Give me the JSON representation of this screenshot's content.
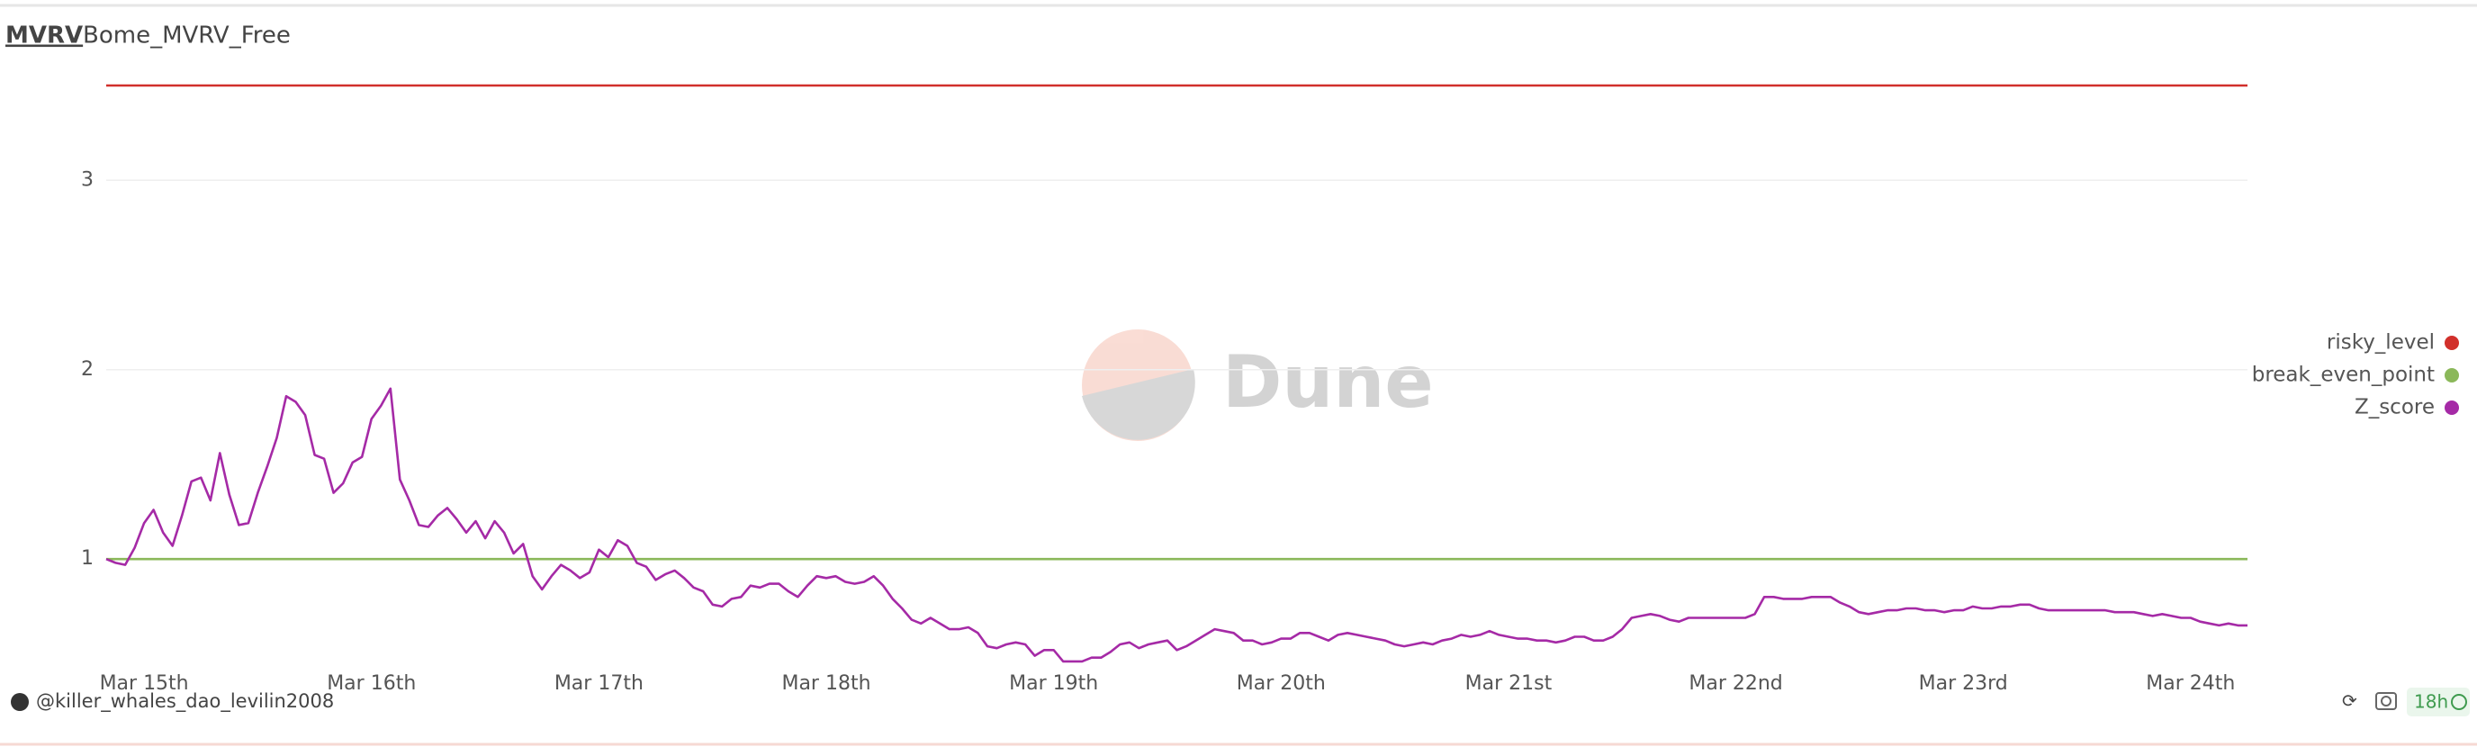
{
  "header": {
    "tab": "MVRV",
    "title": "Bome_MVRV_Free"
  },
  "watermark": "Dune",
  "footer": {
    "author": "@killer_whales_dao_levilin2008",
    "age": "18h"
  },
  "chart_data": {
    "type": "line",
    "legend": "right",
    "grid": true,
    "xlim": [
      -4,
      222
    ],
    "ylim": [
      0.45,
      3.6
    ],
    "yticks": [
      1,
      2,
      3
    ],
    "xticks": [
      {
        "value": 0,
        "label": "Mar 15th"
      },
      {
        "value": 24,
        "label": "Mar 16th"
      },
      {
        "value": 48,
        "label": "Mar 17th"
      },
      {
        "value": 72,
        "label": "Mar 18th"
      },
      {
        "value": 96,
        "label": "Mar 19th"
      },
      {
        "value": 120,
        "label": "Mar 20th"
      },
      {
        "value": 144,
        "label": "Mar 21st"
      },
      {
        "value": 168,
        "label": "Mar 22nd"
      },
      {
        "value": 192,
        "label": "Mar 23rd"
      },
      {
        "value": 216,
        "label": "Mar 24th"
      }
    ],
    "x": [
      -4,
      -3,
      -2,
      -1,
      0,
      1,
      2,
      3,
      4,
      5,
      6,
      7,
      8,
      9,
      10,
      11,
      12,
      13,
      14,
      15,
      16,
      17,
      18,
      19,
      20,
      21,
      22,
      23,
      24,
      25,
      26,
      27,
      28,
      29,
      30,
      31,
      32,
      33,
      34,
      35,
      36,
      37,
      38,
      39,
      40,
      41,
      42,
      43,
      44,
      45,
      46,
      47,
      48,
      49,
      50,
      51,
      52,
      53,
      54,
      55,
      56,
      57,
      58,
      59,
      60,
      61,
      62,
      63,
      64,
      65,
      66,
      67,
      68,
      69,
      70,
      71,
      72,
      73,
      74,
      75,
      76,
      77,
      78,
      79,
      80,
      81,
      82,
      83,
      84,
      85,
      86,
      87,
      88,
      89,
      90,
      91,
      92,
      93,
      94,
      95,
      96,
      97,
      98,
      99,
      100,
      101,
      102,
      103,
      104,
      105,
      106,
      107,
      108,
      109,
      110,
      111,
      112,
      113,
      114,
      115,
      116,
      117,
      118,
      119,
      120,
      121,
      122,
      123,
      124,
      125,
      126,
      127,
      128,
      129,
      130,
      131,
      132,
      133,
      134,
      135,
      136,
      137,
      138,
      139,
      140,
      141,
      142,
      143,
      144,
      145,
      146,
      147,
      148,
      149,
      150,
      151,
      152,
      153,
      154,
      155,
      156,
      157,
      158,
      159,
      160,
      161,
      162,
      163,
      164,
      165,
      166,
      167,
      168,
      169,
      170,
      171,
      172,
      173,
      174,
      175,
      176,
      177,
      178,
      179,
      180,
      181,
      182,
      183,
      184,
      185,
      186,
      187,
      188,
      189,
      190,
      191,
      192,
      193,
      194,
      195,
      196,
      197,
      198,
      199,
      200,
      201,
      202,
      203,
      204,
      205,
      206,
      207,
      208,
      209,
      210,
      211,
      212,
      213,
      214,
      215,
      216,
      217,
      218,
      219,
      220,
      221,
      222
    ],
    "series": [
      {
        "name": "risky_level",
        "color": "#d1302b",
        "x": [
          -4,
          222
        ],
        "values": [
          3.5,
          3.5
        ]
      },
      {
        "name": "break_even_point",
        "color": "#8bb85a",
        "x": [
          -4,
          222
        ],
        "values": [
          1,
          1
        ]
      },
      {
        "name": "Z_score",
        "color": "#a52aa6",
        "values": [
          1.0,
          0.98,
          0.97,
          1.06,
          1.19,
          1.26,
          1.14,
          1.07,
          1.23,
          1.41,
          1.43,
          1.31,
          1.56,
          1.34,
          1.18,
          1.19,
          1.35,
          1.49,
          1.64,
          1.86,
          1.83,
          1.76,
          1.55,
          1.53,
          1.35,
          1.4,
          1.51,
          1.54,
          1.74,
          1.81,
          1.9,
          1.42,
          1.31,
          1.18,
          1.17,
          1.23,
          1.27,
          1.21,
          1.14,
          1.2,
          1.11,
          1.2,
          1.14,
          1.03,
          1.08,
          0.91,
          0.84,
          0.91,
          0.97,
          0.94,
          0.9,
          0.93,
          1.05,
          1.01,
          1.1,
          1.07,
          0.98,
          0.96,
          0.89,
          0.92,
          0.94,
          0.9,
          0.85,
          0.83,
          0.76,
          0.75,
          0.79,
          0.8,
          0.86,
          0.85,
          0.87,
          0.87,
          0.83,
          0.8,
          0.86,
          0.91,
          0.9,
          0.91,
          0.88,
          0.87,
          0.88,
          0.91,
          0.86,
          0.79,
          0.74,
          0.68,
          0.66,
          0.69,
          0.66,
          0.63,
          0.63,
          0.64,
          0.61,
          0.54,
          0.53,
          0.55,
          0.56,
          0.55,
          0.49,
          0.52,
          0.52,
          0.46,
          0.46,
          0.46,
          0.48,
          0.48,
          0.51,
          0.55,
          0.56,
          0.53,
          0.55,
          0.56,
          0.57,
          0.52,
          0.54,
          0.57,
          0.6,
          0.63,
          0.62,
          0.61,
          0.57,
          0.57,
          0.55,
          0.56,
          0.58,
          0.58,
          0.61,
          0.61,
          0.59,
          0.57,
          0.6,
          0.61,
          0.6,
          0.59,
          0.58,
          0.57,
          0.55,
          0.54,
          0.55,
          0.56,
          0.55,
          0.57,
          0.58,
          0.6,
          0.59,
          0.6,
          0.62,
          0.6,
          0.59,
          0.58,
          0.58,
          0.57,
          0.57,
          0.56,
          0.57,
          0.59,
          0.59,
          0.57,
          0.57,
          0.59,
          0.63,
          0.69,
          0.7,
          0.71,
          0.7,
          0.68,
          0.67,
          0.69,
          0.69,
          0.69,
          0.69,
          0.69,
          0.69,
          0.69,
          0.71,
          0.8,
          0.8,
          0.79,
          0.79,
          0.79,
          0.8,
          0.8,
          0.8,
          0.77,
          0.75,
          0.72,
          0.71,
          0.72,
          0.73,
          0.73,
          0.74,
          0.74,
          0.73,
          0.73,
          0.72,
          0.73,
          0.73,
          0.75,
          0.74,
          0.74,
          0.75,
          0.75,
          0.76,
          0.76,
          0.74,
          0.73,
          0.73,
          0.73,
          0.73,
          0.73,
          0.73,
          0.73,
          0.72,
          0.72,
          0.72,
          0.71,
          0.7,
          0.71,
          0.7,
          0.69,
          0.69,
          0.67,
          0.66,
          0.65,
          0.66,
          0.65,
          0.65
        ]
      }
    ]
  }
}
